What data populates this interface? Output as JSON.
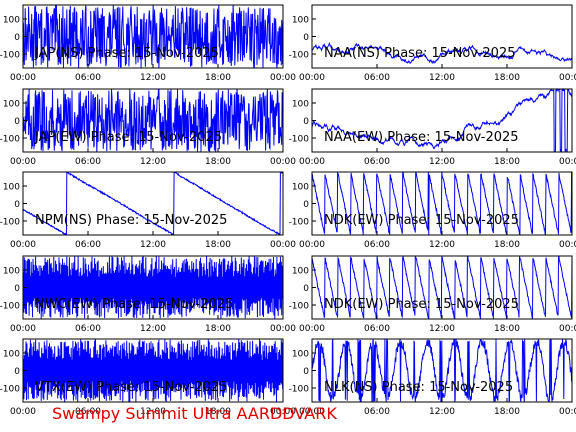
{
  "footer": "Swampy Summit Ultra AARDDVARK",
  "chart_data": [
    {
      "type": "line",
      "title": "JAP(NS) Phase: 15-Nov-2025",
      "xticks": [
        "00:00",
        "06:00",
        "12:00",
        "18:00",
        "00:00"
      ],
      "yticks": [
        "100",
        "0",
        "-100"
      ],
      "ylim": [
        -180,
        180
      ],
      "pattern": "noise",
      "series": [
        {
          "color": "#0000ff"
        }
      ]
    },
    {
      "type": "line",
      "title": "NAA(NS) Phase: 15-Nov-2025",
      "xticks": [
        "00:00",
        "06:00",
        "12:00",
        "18:00",
        "00:00"
      ],
      "yticks": [
        "100",
        "0",
        "-100"
      ],
      "ylim": [
        -180,
        180
      ],
      "pattern": "drift",
      "series": [
        {
          "color": "#0000ff"
        }
      ]
    },
    {
      "type": "line",
      "title": "JAP(EW) Phase: 15-Nov-2025",
      "xticks": [
        "00:00",
        "06:00",
        "12:00",
        "18:00",
        "00:00"
      ],
      "yticks": [
        "100",
        "0",
        "-100"
      ],
      "ylim": [
        -180,
        180
      ],
      "pattern": "noise",
      "series": [
        {
          "color": "#0000ff"
        }
      ]
    },
    {
      "type": "line",
      "title": "NAA(EW) Phase: 15-Nov-2025",
      "xticks": [
        "00:00",
        "06:00",
        "12:00",
        "18:00",
        "00:00"
      ],
      "yticks": [
        "100",
        "0",
        "-100"
      ],
      "ylim": [
        -180,
        180
      ],
      "pattern": "drift",
      "series": [
        {
          "color": "#0000ff"
        }
      ]
    },
    {
      "type": "line",
      "title": "NPM(NS) Phase: 15-Nov-2025",
      "xticks": [
        "00:00",
        "06:00",
        "12:00",
        "18:00",
        "00:00"
      ],
      "yticks": [
        "100",
        "0",
        "-100"
      ],
      "ylim": [
        -180,
        180
      ],
      "pattern": "ramp",
      "series": [
        {
          "color": "#0000ff"
        }
      ]
    },
    {
      "type": "line",
      "title": "NDK(EW) Phase: 15-Nov-2025",
      "xticks": [
        "00:00",
        "06:00",
        "12:00",
        "18:00",
        "00:00"
      ],
      "yticks": [
        "100",
        "0",
        "-100"
      ],
      "ylim": [
        -180,
        180
      ],
      "pattern": "saw",
      "series": [
        {
          "color": "#0000ff"
        }
      ]
    },
    {
      "type": "line",
      "title": "NWC(EW) Phase: 15-Nov-2025",
      "xticks": [
        "00:00",
        "06:00",
        "12:00",
        "18:00",
        "00:00"
      ],
      "yticks": [
        "100",
        "0",
        "-100"
      ],
      "ylim": [
        -180,
        180
      ],
      "pattern": "dense",
      "series": [
        {
          "color": "#0000ff"
        }
      ]
    },
    {
      "type": "line",
      "title": "NDK(EW) Phase: 15-Nov-2025",
      "xticks": [
        "00:00",
        "06:00",
        "12:00",
        "18:00",
        "00:00"
      ],
      "yticks": [
        "100",
        "0",
        "-100"
      ],
      "ylim": [
        -180,
        180
      ],
      "pattern": "saw",
      "series": [
        {
          "color": "#0000ff"
        }
      ]
    },
    {
      "type": "line",
      "title": "VTX(EW) Phase: 15-Nov-2025",
      "xticks": [
        "00:00",
        "06:00",
        "12:00",
        "18:00",
        "00:00"
      ],
      "yticks": [
        "100",
        "0",
        "-100"
      ],
      "ylim": [
        -180,
        180
      ],
      "pattern": "dense",
      "series": [
        {
          "color": "#0000ff"
        }
      ]
    },
    {
      "type": "line",
      "title": "NLK(NS) Phase: 15-Nov-2025",
      "xticks": [
        "00:00",
        "06:00",
        "12:00",
        "18:00",
        "00:00"
      ],
      "yticks": [
        "100",
        "0",
        "-100"
      ],
      "ylim": [
        -180,
        180
      ],
      "pattern": "zig",
      "series": [
        {
          "color": "#0000ff"
        }
      ]
    }
  ]
}
